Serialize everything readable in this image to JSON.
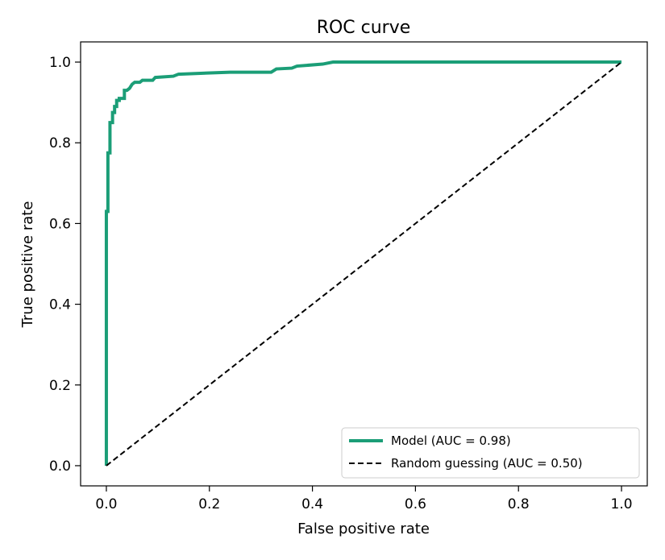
{
  "chart_data": {
    "type": "line",
    "title": "ROC curve",
    "xlabel": "False positive rate",
    "ylabel": "True positive rate",
    "xlim": [
      -0.05,
      1.05
    ],
    "ylim": [
      -0.05,
      1.05
    ],
    "xticks": [
      0.0,
      0.2,
      0.4,
      0.6,
      0.8,
      1.0
    ],
    "yticks": [
      0.0,
      0.2,
      0.4,
      0.6,
      0.8,
      1.0
    ],
    "xtick_labels": [
      "0.0",
      "0.2",
      "0.4",
      "0.6",
      "0.8",
      "1.0"
    ],
    "ytick_labels": [
      "0.0",
      "0.2",
      "0.4",
      "0.6",
      "0.8",
      "1.0"
    ],
    "grid": false,
    "legend_position": "lower-right",
    "series": [
      {
        "name": "Model (AUC = 0.98)",
        "color": "#1b9e77",
        "style": "solid",
        "x": [
          0.0,
          0.0,
          0.003,
          0.003,
          0.007,
          0.007,
          0.012,
          0.012,
          0.016,
          0.016,
          0.02,
          0.02,
          0.025,
          0.025,
          0.035,
          0.035,
          0.04,
          0.045,
          0.05,
          0.055,
          0.065,
          0.07,
          0.09,
          0.095,
          0.13,
          0.14,
          0.24,
          0.32,
          0.33,
          0.36,
          0.37,
          0.42,
          0.44,
          1.0
        ],
        "y": [
          0.0,
          0.63,
          0.63,
          0.775,
          0.775,
          0.85,
          0.85,
          0.875,
          0.875,
          0.89,
          0.89,
          0.905,
          0.905,
          0.91,
          0.91,
          0.93,
          0.93,
          0.935,
          0.945,
          0.95,
          0.95,
          0.955,
          0.955,
          0.962,
          0.965,
          0.97,
          0.975,
          0.975,
          0.983,
          0.985,
          0.99,
          0.995,
          1.0,
          1.0
        ]
      },
      {
        "name": "Random guessing (AUC = 0.50)",
        "color": "#000000",
        "style": "dashed",
        "x": [
          0.0,
          1.0
        ],
        "y": [
          0.0,
          1.0
        ]
      }
    ]
  }
}
